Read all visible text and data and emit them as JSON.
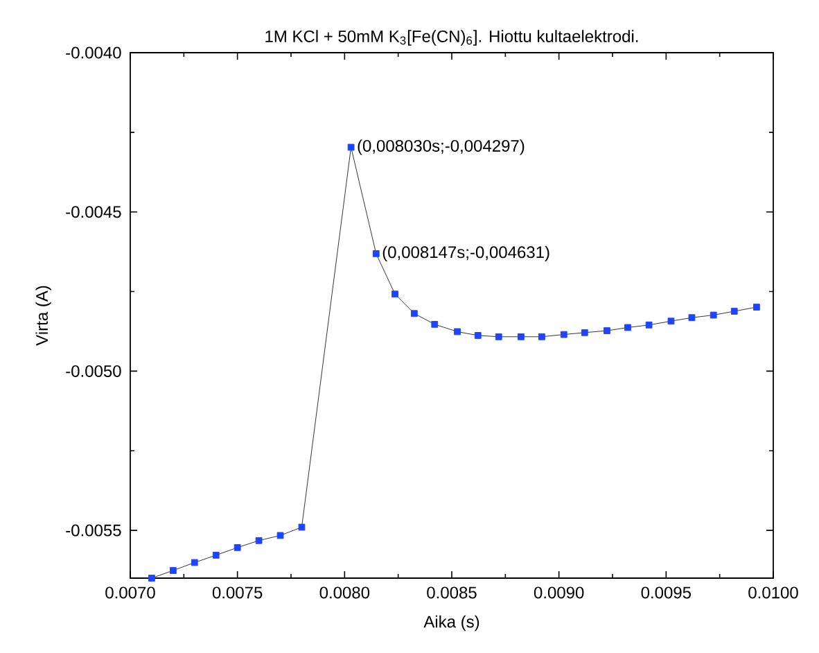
{
  "chart_data": {
    "type": "line",
    "title": "1M KCl + 50mM K$_{3}$[Fe(CN)$_{6}$]. Hiottu kultaelektrodi.",
    "xlabel": "Aika (s)",
    "ylabel": "Virta (A)",
    "series": [
      {
        "color": "#1f45fc",
        "x": [
          0.0071,
          0.0072,
          0.0073,
          0.0074,
          0.0075,
          0.0076,
          0.0077,
          0.0078,
          0.00803,
          0.008147,
          0.008235,
          0.008325,
          0.00842,
          0.008526,
          0.008622,
          0.008719,
          0.008823,
          0.00892,
          0.009023,
          0.00912,
          0.009224,
          0.009321,
          0.00942,
          0.009523,
          0.00962,
          0.009721,
          0.009818,
          0.009922
        ],
        "values": [
          -0.00565,
          -0.005626,
          -0.005601,
          -0.005578,
          -0.005554,
          -0.005532,
          -0.005516,
          -0.00549,
          -0.004297,
          -0.004631,
          -0.004758,
          -0.004819,
          -0.004853,
          -0.004876,
          -0.004888,
          -0.004892,
          -0.004892,
          -0.004892,
          -0.004885,
          -0.004879,
          -0.004873,
          -0.004863,
          -0.004855,
          -0.004843,
          -0.004832,
          -0.004824,
          -0.004812,
          -0.004799
        ]
      }
    ],
    "annotations": [
      {
        "text": "(0,008030s;-0,004297)",
        "x": 0.00803,
        "y": -0.004297
      },
      {
        "text": "(0,008147s;-0,004631)",
        "x": 0.008147,
        "y": -0.004631
      }
    ],
    "xlim": [
      0.007,
      0.01
    ],
    "xticks": [
      {
        "value": 0.007,
        "label": "0.0070"
      },
      {
        "value": 0.0075,
        "label": "0.0075"
      },
      {
        "value": 0.008,
        "label": "0.0080"
      },
      {
        "value": 0.0085,
        "label": "0.0085"
      },
      {
        "value": 0.009,
        "label": "0.0090"
      },
      {
        "value": 0.0095,
        "label": "0.0095"
      },
      {
        "value": 0.01,
        "label": "0.0100"
      }
    ],
    "ylim": [
      -0.00565,
      -0.004
    ],
    "yticks": [
      {
        "value": -0.0055,
        "label": "-0.0055"
      },
      {
        "value": -0.005,
        "label": "-0.0050"
      },
      {
        "value": -0.0045,
        "label": "-0.0045"
      },
      {
        "value": -0.004,
        "label": "-0.0040"
      }
    ],
    "marker": "square",
    "line_style": "solid"
  }
}
